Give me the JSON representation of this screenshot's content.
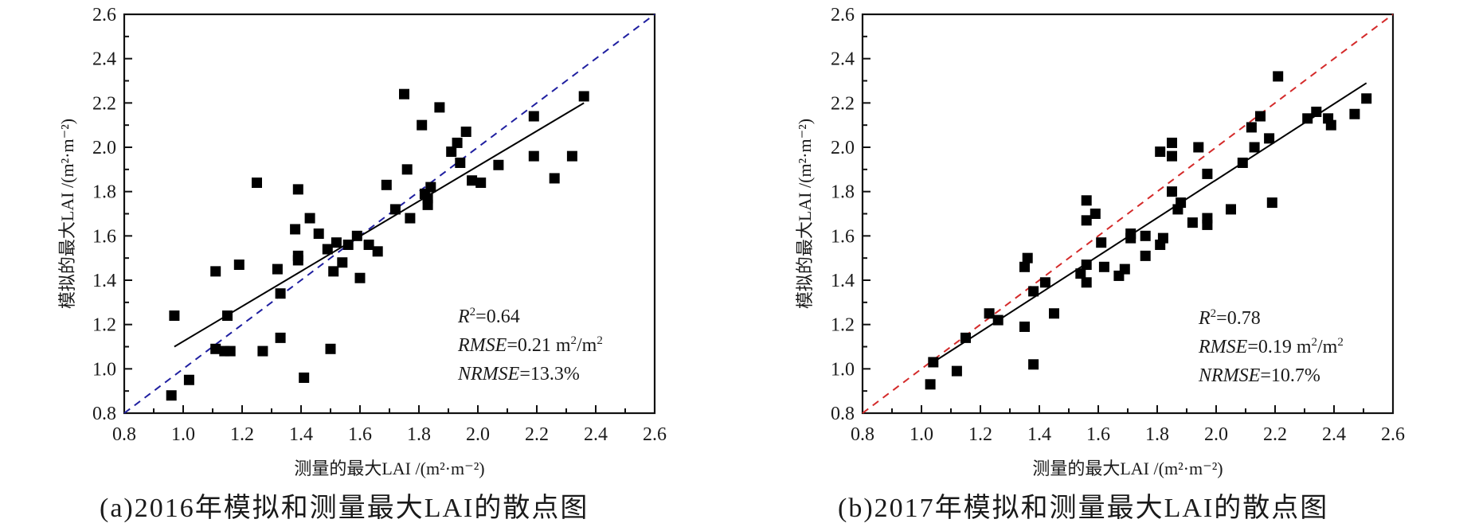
{
  "chart_data": [
    {
      "type": "scatter",
      "panel": "a",
      "caption": "(a)2016年模拟和测量最大LAI的散点图",
      "xlabel": "测量的最大LAI /(m²·m⁻²)",
      "ylabel": "模拟的最大LAI /(m²·m⁻²)",
      "xlim": [
        0.8,
        2.6
      ],
      "ylim": [
        0.8,
        2.6
      ],
      "xticks": [
        "0.8",
        "1.0",
        "1.2",
        "1.4",
        "1.6",
        "1.8",
        "2.0",
        "2.2",
        "2.4",
        "2.6"
      ],
      "yticks": [
        "0.8",
        "1.0",
        "1.2",
        "1.4",
        "1.6",
        "1.8",
        "2.0",
        "2.2",
        "2.4",
        "2.6"
      ],
      "grid": false,
      "one_to_one_line": {
        "style": "dashed",
        "color": "#1f1fa0",
        "from": [
          0.8,
          0.8
        ],
        "to": [
          2.6,
          2.6
        ]
      },
      "fit_line": {
        "style": "solid",
        "color": "#000000",
        "from": [
          0.97,
          1.1
        ],
        "to": [
          2.36,
          2.2
        ]
      },
      "stats": {
        "r2_label": "R",
        "r2_sup": "2",
        "r2_value": "=0.64",
        "rmse_label": "RMSE",
        "rmse_value": "=0.21 m",
        "rmse_sup1": "2",
        "rmse_mid": "/m",
        "rmse_sup2": "2",
        "nrmse_label": "NRMSE",
        "nrmse_value": "=13.3%"
      },
      "marker": {
        "shape": "square",
        "color": "#000000"
      },
      "points": [
        [
          0.96,
          0.88
        ],
        [
          0.97,
          1.24
        ],
        [
          1.02,
          0.95
        ],
        [
          1.11,
          1.44
        ],
        [
          1.11,
          1.09
        ],
        [
          1.14,
          1.08
        ],
        [
          1.16,
          1.08
        ],
        [
          1.15,
          1.24
        ],
        [
          1.19,
          1.47
        ],
        [
          1.25,
          1.84
        ],
        [
          1.27,
          1.08
        ],
        [
          1.32,
          1.45
        ],
        [
          1.33,
          1.34
        ],
        [
          1.33,
          1.14
        ],
        [
          1.38,
          1.63
        ],
        [
          1.39,
          1.81
        ],
        [
          1.39,
          1.51
        ],
        [
          1.39,
          1.49
        ],
        [
          1.43,
          1.68
        ],
        [
          1.46,
          1.61
        ],
        [
          1.49,
          1.54
        ],
        [
          1.41,
          0.96
        ],
        [
          1.5,
          1.09
        ],
        [
          1.51,
          1.44
        ],
        [
          1.52,
          1.57
        ],
        [
          1.54,
          1.48
        ],
        [
          1.56,
          1.56
        ],
        [
          1.59,
          1.6
        ],
        [
          1.6,
          1.41
        ],
        [
          1.63,
          1.56
        ],
        [
          1.66,
          1.53
        ],
        [
          1.69,
          1.83
        ],
        [
          1.72,
          1.72
        ],
        [
          1.75,
          2.24
        ],
        [
          1.76,
          1.9
        ],
        [
          1.77,
          1.68
        ],
        [
          1.81,
          2.1
        ],
        [
          1.82,
          1.79
        ],
        [
          1.83,
          1.74
        ],
        [
          1.83,
          1.77
        ],
        [
          1.84,
          1.82
        ],
        [
          1.87,
          2.18
        ],
        [
          1.91,
          1.98
        ],
        [
          1.93,
          2.02
        ],
        [
          1.94,
          1.93
        ],
        [
          1.96,
          2.07
        ],
        [
          1.98,
          1.85
        ],
        [
          2.01,
          1.84
        ],
        [
          2.07,
          1.92
        ],
        [
          2.19,
          2.14
        ],
        [
          2.19,
          1.96
        ],
        [
          2.26,
          1.86
        ],
        [
          2.32,
          1.96
        ],
        [
          2.36,
          2.23
        ]
      ]
    },
    {
      "type": "scatter",
      "panel": "b",
      "caption": "(b)2017年模拟和测量最大LAI的散点图",
      "xlabel": "测量的最大LAI /(m²·m⁻²)",
      "ylabel": "模拟的最大LAI /(m²·m⁻²)",
      "xlim": [
        0.8,
        2.6
      ],
      "ylim": [
        0.8,
        2.6
      ],
      "xticks": [
        "0.8",
        "1.0",
        "1.2",
        "1.4",
        "1.6",
        "1.8",
        "2.0",
        "2.2",
        "2.4",
        "2.6"
      ],
      "yticks": [
        "0.8",
        "1.0",
        "1.2",
        "1.4",
        "1.6",
        "1.8",
        "2.0",
        "2.2",
        "2.4",
        "2.6"
      ],
      "grid": false,
      "one_to_one_line": {
        "style": "dashed",
        "color": "#d42a2a",
        "from": [
          0.8,
          0.8
        ],
        "to": [
          2.6,
          2.6
        ]
      },
      "fit_line": {
        "style": "solid",
        "color": "#000000",
        "from": [
          1.04,
          1.03
        ],
        "to": [
          2.51,
          2.29
        ]
      },
      "stats": {
        "r2_label": "R",
        "r2_sup": "2",
        "r2_value": "=0.78",
        "rmse_label": "RMSE",
        "rmse_value": "=0.19 m",
        "rmse_sup1": "2",
        "rmse_mid": "/m",
        "rmse_sup2": "2",
        "nrmse_label": "NRMSE",
        "nrmse_value": "=10.7%"
      },
      "marker": {
        "shape": "square",
        "color": "#000000"
      },
      "points": [
        [
          1.03,
          0.93
        ],
        [
          1.04,
          1.03
        ],
        [
          1.12,
          0.99
        ],
        [
          1.15,
          1.14
        ],
        [
          1.23,
          1.25
        ],
        [
          1.26,
          1.22
        ],
        [
          1.35,
          1.19
        ],
        [
          1.38,
          1.02
        ],
        [
          1.35,
          1.46
        ],
        [
          1.36,
          1.5
        ],
        [
          1.38,
          1.35
        ],
        [
          1.42,
          1.39
        ],
        [
          1.45,
          1.25
        ],
        [
          1.54,
          1.43
        ],
        [
          1.56,
          1.39
        ],
        [
          1.56,
          1.76
        ],
        [
          1.56,
          1.67
        ],
        [
          1.56,
          1.47
        ],
        [
          1.59,
          1.7
        ],
        [
          1.61,
          1.57
        ],
        [
          1.62,
          1.46
        ],
        [
          1.67,
          1.42
        ],
        [
          1.71,
          1.61
        ],
        [
          1.71,
          1.59
        ],
        [
          1.69,
          1.45
        ],
        [
          1.76,
          1.6
        ],
        [
          1.76,
          1.51
        ],
        [
          1.81,
          1.56
        ],
        [
          1.81,
          1.98
        ],
        [
          1.82,
          1.59
        ],
        [
          1.85,
          2.02
        ],
        [
          1.85,
          1.96
        ],
        [
          1.85,
          1.8
        ],
        [
          1.87,
          1.72
        ],
        [
          1.88,
          1.75
        ],
        [
          1.92,
          1.66
        ],
        [
          1.94,
          2.0
        ],
        [
          1.97,
          1.88
        ],
        [
          1.97,
          1.68
        ],
        [
          1.97,
          1.65
        ],
        [
          2.05,
          1.72
        ],
        [
          2.09,
          1.93
        ],
        [
          2.12,
          2.09
        ],
        [
          2.13,
          2.0
        ],
        [
          2.15,
          2.14
        ],
        [
          2.18,
          2.04
        ],
        [
          2.19,
          1.75
        ],
        [
          2.21,
          2.32
        ],
        [
          2.31,
          2.13
        ],
        [
          2.34,
          2.16
        ],
        [
          2.38,
          2.13
        ],
        [
          2.39,
          2.1
        ],
        [
          2.47,
          2.15
        ],
        [
          2.51,
          2.22
        ]
      ]
    }
  ]
}
